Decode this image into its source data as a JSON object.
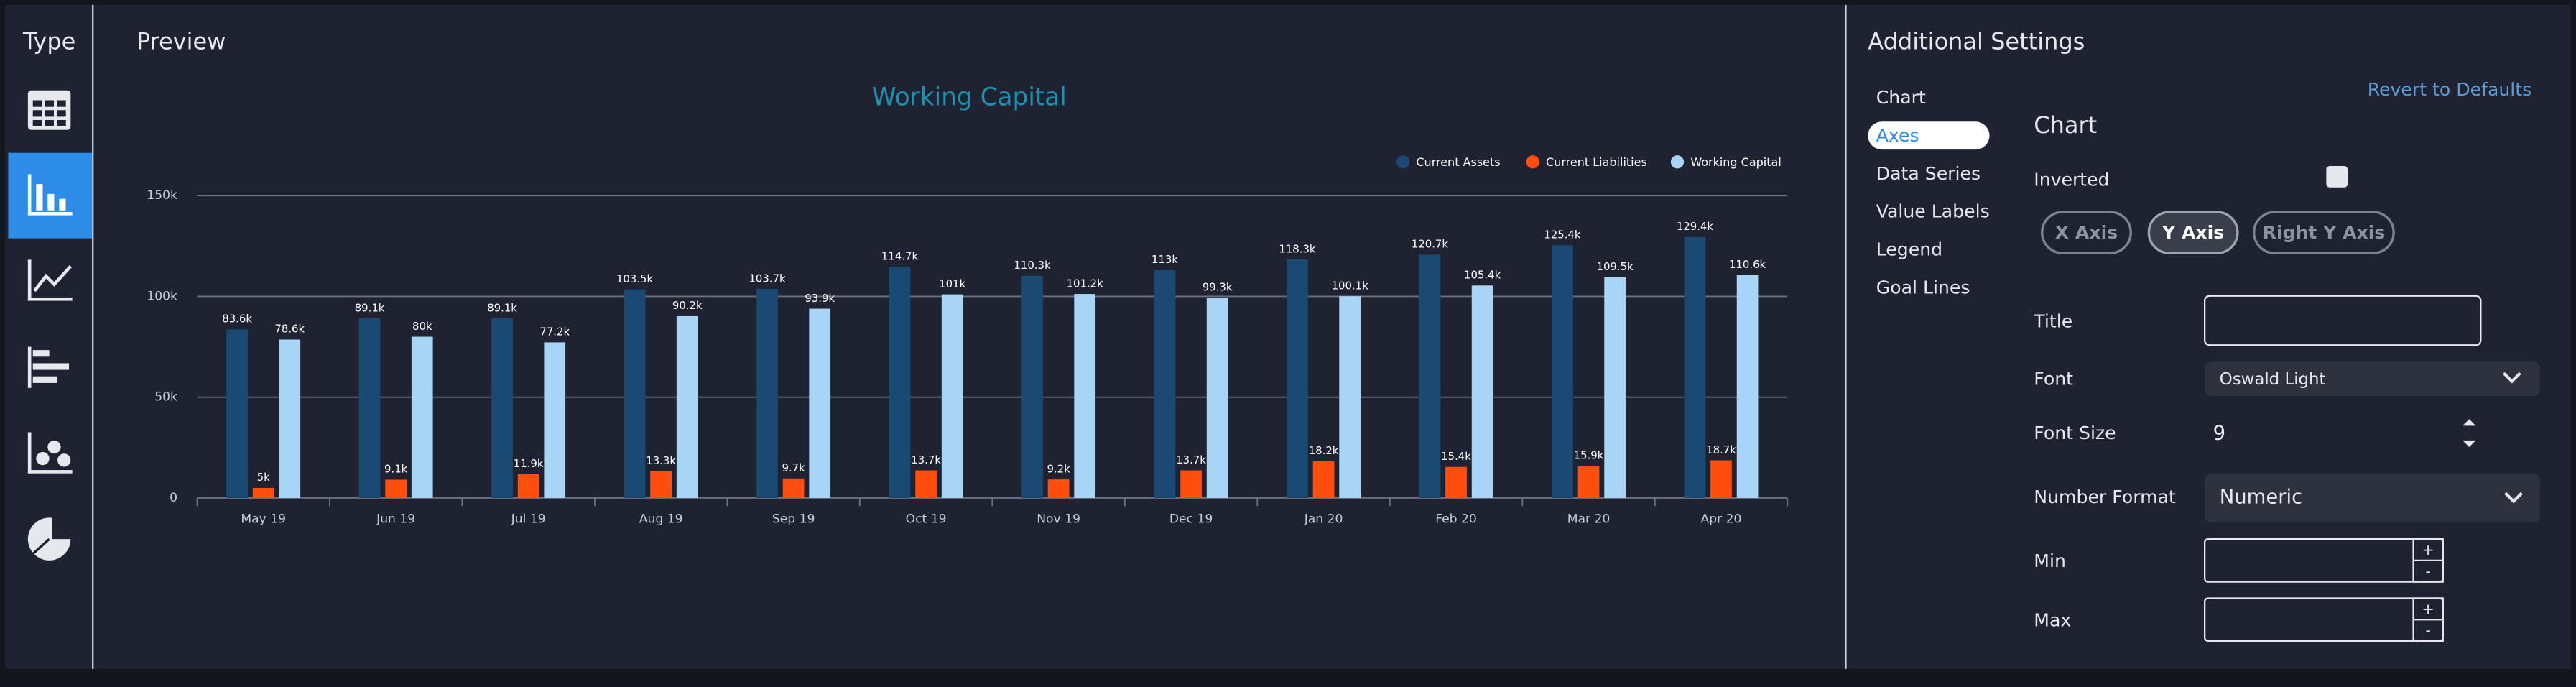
{
  "sidebar": {
    "title": "Type"
  },
  "preview": {
    "title": "Preview"
  },
  "chart_data": {
    "type": "bar",
    "title": "Working Capital",
    "categories": [
      "May 19",
      "Jun 19",
      "Jul 19",
      "Aug 19",
      "Sep 19",
      "Oct 19",
      "Nov 19",
      "Dec 19",
      "Jan 20",
      "Feb 20",
      "Mar 20",
      "Apr 20"
    ],
    "series": [
      {
        "name": "Current Assets",
        "color": "#1a4a73",
        "values": [
          83600,
          89100,
          89100,
          103500,
          103700,
          114700,
          110300,
          113000,
          118300,
          120700,
          125400,
          129400
        ],
        "value_labels": [
          "83.6k",
          "89.1k",
          "89.1k",
          "103.5k",
          "103.7k",
          "114.7k",
          "110.3k",
          "113k",
          "118.3k",
          "120.7k",
          "125.4k",
          "129.4k"
        ]
      },
      {
        "name": "Current Liabilities",
        "color": "#ff4e0d",
        "values": [
          5000,
          9100,
          11900,
          13300,
          9700,
          13700,
          9200,
          13700,
          18200,
          15400,
          15900,
          18700
        ],
        "value_labels": [
          "5k",
          "9.1k",
          "11.9k",
          "13.3k",
          "9.7k",
          "13.7k",
          "9.2k",
          "13.7k",
          "18.2k",
          "15.4k",
          "15.9k",
          "18.7k"
        ]
      },
      {
        "name": "Working Capital",
        "color": "#a8d4f5",
        "values": [
          78600,
          80000,
          77200,
          90200,
          93900,
          101000,
          101200,
          99300,
          100100,
          105400,
          109500,
          110600
        ],
        "value_labels": [
          "78.6k",
          "80k",
          "77.2k",
          "90.2k",
          "93.9k",
          "101k",
          "101.2k",
          "99.3k",
          "100.1k",
          "105.4k",
          "109.5k",
          "110.6k"
        ]
      }
    ],
    "ylim": [
      0,
      150000
    ],
    "yticks": [
      0,
      {
        "value": 50000,
        "label": "50k"
      },
      {
        "value": 100000,
        "label": "100k"
      },
      {
        "value": 150000,
        "label": "150k"
      }
    ],
    "grid": true,
    "legend": "top-right"
  },
  "settings": {
    "title": "Additional Settings",
    "menu": [
      "Chart",
      "Axes",
      "Data Series",
      "Value Labels",
      "Legend",
      "Goal Lines"
    ],
    "revert": "Revert to Defaults",
    "section": "Chart",
    "inverted": "Inverted",
    "axis_tabs": [
      "X Axis",
      "Y Axis",
      "Right Y Axis"
    ],
    "title_label": "Title",
    "font_label": "Font",
    "font_value": "Oswald Light",
    "font_size_label": "Font Size",
    "font_size_value": 9,
    "number_format_label": "Number Format",
    "number_format_value": "Numeric",
    "min_label": "Min",
    "max_label": "Max",
    "increment": "+",
    "decrement": "-"
  }
}
